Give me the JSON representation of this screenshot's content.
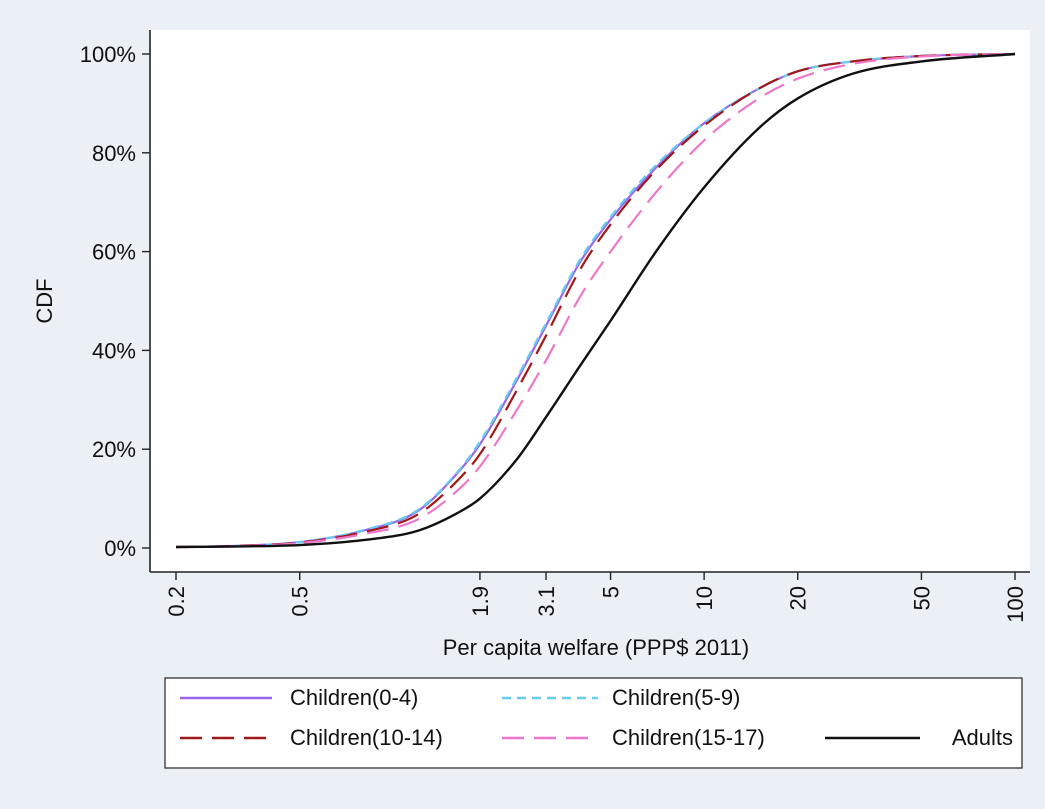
{
  "chart_data": {
    "type": "line",
    "title": "",
    "xlabel": "Per capita welfare (PPP$ 2011)",
    "ylabel": "CDF",
    "x_scale": "log",
    "xlim": [
      0.2,
      100
    ],
    "ylim": [
      0,
      1
    ],
    "x_ticks": [
      0.2,
      0.5,
      1.9,
      3.1,
      5,
      10,
      20,
      50,
      100
    ],
    "x_tick_labels": [
      "0.2",
      "0.5",
      "1.9",
      "3.1",
      "5",
      "10",
      "20",
      "50",
      "100"
    ],
    "y_ticks": [
      0,
      0.2,
      0.4,
      0.6,
      0.8,
      1.0
    ],
    "y_tick_labels": [
      "0%",
      "20%",
      "40%",
      "60%",
      "80%",
      "100%"
    ],
    "grid": false,
    "legend_placement": "bottom",
    "series": [
      {
        "name": "Children(0-4)",
        "color": "#9966ee",
        "dash": "solid",
        "x": [
          0.2,
          0.3,
          0.5,
          0.8,
          1.2,
          1.6,
          1.9,
          2.5,
          3.1,
          4,
          5,
          7,
          10,
          15,
          20,
          30,
          50,
          100
        ],
        "y": [
          0.002,
          0.004,
          0.012,
          0.035,
          0.075,
          0.15,
          0.21,
          0.34,
          0.45,
          0.58,
          0.665,
          0.77,
          0.86,
          0.93,
          0.965,
          0.985,
          0.996,
          1.0
        ]
      },
      {
        "name": "Children(5-9)",
        "color": "#66ccee",
        "dash": "dash",
        "x": [
          0.2,
          0.3,
          0.5,
          0.8,
          1.2,
          1.6,
          1.9,
          2.5,
          3.1,
          4,
          5,
          7,
          10,
          15,
          20,
          30,
          50,
          100
        ],
        "y": [
          0.002,
          0.004,
          0.012,
          0.036,
          0.077,
          0.152,
          0.215,
          0.345,
          0.455,
          0.585,
          0.67,
          0.775,
          0.86,
          0.93,
          0.965,
          0.985,
          0.996,
          1.0
        ]
      },
      {
        "name": "Children(10-14)",
        "color": "#a01818",
        "dash": "longdash",
        "x": [
          0.2,
          0.3,
          0.5,
          0.8,
          1.2,
          1.6,
          1.9,
          2.5,
          3.1,
          4,
          5,
          7,
          10,
          15,
          20,
          30,
          50,
          100
        ],
        "y": [
          0.002,
          0.004,
          0.011,
          0.032,
          0.068,
          0.135,
          0.19,
          0.32,
          0.43,
          0.565,
          0.655,
          0.765,
          0.855,
          0.93,
          0.965,
          0.985,
          0.996,
          1.0
        ]
      },
      {
        "name": "Children(15-17)",
        "color": "#ee77cc",
        "dash": "longdash",
        "x": [
          0.2,
          0.3,
          0.5,
          0.8,
          1.2,
          1.6,
          1.9,
          2.5,
          3.1,
          4,
          5,
          7,
          10,
          15,
          20,
          30,
          50,
          100
        ],
        "y": [
          0.002,
          0.003,
          0.01,
          0.028,
          0.058,
          0.115,
          0.165,
          0.28,
          0.38,
          0.51,
          0.6,
          0.72,
          0.825,
          0.91,
          0.95,
          0.98,
          0.995,
          1.0
        ]
      },
      {
        "name": "Adults",
        "color": "#111111",
        "dash": "solid",
        "x": [
          0.2,
          0.3,
          0.5,
          0.8,
          1.2,
          1.6,
          1.9,
          2.5,
          3.1,
          4,
          5,
          7,
          10,
          15,
          20,
          30,
          50,
          100
        ],
        "y": [
          0.002,
          0.003,
          0.006,
          0.016,
          0.035,
          0.07,
          0.1,
          0.18,
          0.265,
          0.37,
          0.46,
          0.6,
          0.73,
          0.85,
          0.91,
          0.96,
          0.985,
          1.0
        ]
      }
    ]
  }
}
